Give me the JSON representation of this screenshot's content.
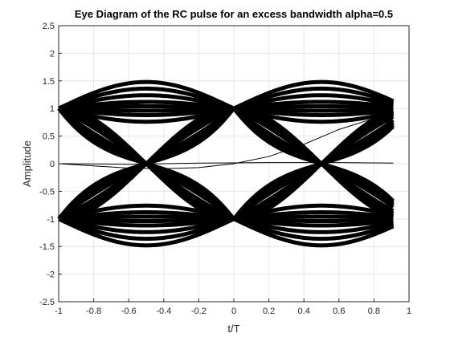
{
  "chart_data": {
    "type": "line",
    "title": "Eye Diagram of the RC pulse for an excess bandwidth alpha=0.5",
    "xlabel": "t/T",
    "ylabel": "Amplitude",
    "xlim": [
      -1,
      1
    ],
    "ylim": [
      -2.5,
      2.5
    ],
    "x_ticks": [
      -1,
      -0.8,
      -0.6,
      -0.4,
      -0.2,
      0,
      0.2,
      0.4,
      0.6,
      0.8,
      1
    ],
    "x_tick_labels": [
      "-1",
      "-0.8",
      "-0.6",
      "-0.4",
      "-0.2",
      "0",
      "0.2",
      "0.4",
      "0.6",
      "0.8",
      "1"
    ],
    "y_ticks": [
      -2.5,
      -2,
      -1.5,
      -1,
      -0.5,
      0,
      0.5,
      1,
      1.5,
      2,
      2.5
    ],
    "y_tick_labels": [
      "-2.5",
      "-2",
      "-1.5",
      "-1",
      "-0.5",
      "0",
      "0.5",
      "1",
      "1.5",
      "2",
      "2.5"
    ],
    "grid": true,
    "line_color": "#000000",
    "x_data_end": 0.91,
    "eye_levels_at_symbol": [
      1,
      -1
    ],
    "eye_bulge_amplitudes": [
      0.48,
      0.36,
      0.24,
      0.12,
      0.04,
      -0.04,
      -0.12,
      -0.24
    ],
    "eye_crossing_offsets": [
      0.55,
      0.42,
      0.28,
      0.12,
      -0.12,
      -0.28,
      -0.42,
      -0.55
    ],
    "stray_traces": [
      {
        "x": [
          -1,
          -0.8,
          -0.6,
          -0.4,
          -0.2,
          0,
          0.2,
          0.4,
          0.6,
          0.8,
          0.91
        ],
        "y": [
          0,
          -0.04,
          -0.08,
          -0.09,
          -0.07,
          0,
          0.13,
          0.35,
          0.62,
          0.82,
          0.92
        ]
      },
      {
        "x": [
          -1,
          -0.6,
          -0.2,
          0.2,
          0.6,
          0.91
        ],
        "y": [
          0,
          -0.01,
          0.01,
          0.02,
          0.02,
          0.01
        ]
      },
      {
        "x": [
          -0.8,
          -0.6,
          -0.4,
          -0.2,
          0
        ],
        "y": [
          1.04,
          1.08,
          1.1,
          1.07,
          1.0
        ]
      }
    ]
  }
}
